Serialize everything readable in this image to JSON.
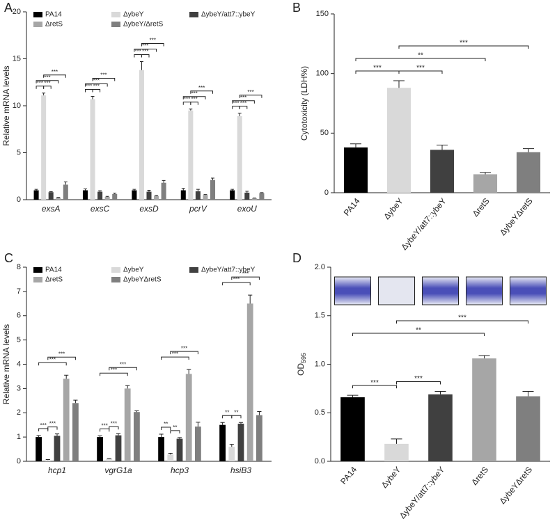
{
  "chart_data": [
    {
      "type": "bar",
      "panel": "A",
      "ylabel": "Relative mRNA levels",
      "category_style": "italic",
      "categories": [
        "exsA",
        "exsC",
        "exsD",
        "pcrV",
        "exoU"
      ],
      "series": [
        {
          "name": "PA14",
          "color": "#000000",
          "values": [
            1.0,
            1.0,
            1.0,
            1.0,
            1.0
          ],
          "errors": [
            0.1,
            0.15,
            0.1,
            0.2,
            0.1
          ]
        },
        {
          "name": "ΔybeY",
          "color": "#d9d9d9",
          "values": [
            11.1,
            10.7,
            13.8,
            9.5,
            8.9
          ],
          "errors": [
            0.25,
            0.3,
            0.9,
            0.15,
            0.3
          ]
        },
        {
          "name": "ΔybeY/att7::ybeY",
          "color": "#404040",
          "values": [
            0.8,
            0.85,
            0.85,
            0.9,
            0.75
          ],
          "errors": [
            0.05,
            0.1,
            0.15,
            0.2,
            0.15
          ]
        },
        {
          "name": "ΔretS",
          "color": "#a6a6a6",
          "values": [
            0.2,
            0.3,
            0.4,
            0.5,
            0.15
          ],
          "errors": [
            0.05,
            0.05,
            0.05,
            0.05,
            0.03
          ]
        },
        {
          "name": "ΔybeY/ΔretS",
          "color": "#7f7f7f",
          "values": [
            1.6,
            0.6,
            1.8,
            2.1,
            0.7
          ],
          "errors": [
            0.3,
            0.1,
            0.25,
            0.2,
            0.05
          ]
        }
      ],
      "ylim": [
        0,
        20
      ],
      "yticks": [
        0,
        5,
        10,
        15,
        20
      ],
      "brackets": [
        {
          "group": 0,
          "bars": [
            0,
            1
          ],
          "label": "***"
        },
        {
          "group": 0,
          "bars": [
            1,
            2
          ],
          "label": "***"
        },
        {
          "group": 0,
          "bars": [
            0,
            3
          ],
          "label": "***"
        },
        {
          "group": 0,
          "bars": [
            1,
            4
          ],
          "label": "***"
        },
        {
          "group": 1,
          "bars": [
            0,
            1
          ],
          "label": "***"
        },
        {
          "group": 1,
          "bars": [
            1,
            2
          ],
          "label": "***"
        },
        {
          "group": 1,
          "bars": [
            0,
            3
          ],
          "label": "***"
        },
        {
          "group": 1,
          "bars": [
            1,
            4
          ],
          "label": "***"
        },
        {
          "group": 2,
          "bars": [
            0,
            1
          ],
          "label": "***"
        },
        {
          "group": 2,
          "bars": [
            1,
            2
          ],
          "label": "***"
        },
        {
          "group": 2,
          "bars": [
            0,
            3
          ],
          "label": "***"
        },
        {
          "group": 2,
          "bars": [
            1,
            4
          ],
          "label": "***"
        },
        {
          "group": 3,
          "bars": [
            0,
            1
          ],
          "label": "***"
        },
        {
          "group": 3,
          "bars": [
            1,
            2
          ],
          "label": "***"
        },
        {
          "group": 3,
          "bars": [
            0,
            3
          ],
          "label": "***"
        },
        {
          "group": 3,
          "bars": [
            1,
            4
          ],
          "label": "***"
        },
        {
          "group": 4,
          "bars": [
            0,
            1
          ],
          "label": "***"
        },
        {
          "group": 4,
          "bars": [
            1,
            2
          ],
          "label": "***"
        },
        {
          "group": 4,
          "bars": [
            0,
            3
          ],
          "label": "***"
        },
        {
          "group": 4,
          "bars": [
            1,
            4
          ],
          "label": "***"
        }
      ]
    },
    {
      "type": "bar",
      "panel": "B",
      "ylabel": "Cytotoxicity (LDH%)",
      "categories": [
        "PA14",
        "ΔybeY",
        "ΔybeY/att7::ybeY",
        "ΔretS",
        "ΔybeYΔretS"
      ],
      "values": [
        38,
        88,
        36,
        15.5,
        34
      ],
      "errors": [
        3,
        6,
        4,
        1.5,
        3
      ],
      "colors": [
        "#000000",
        "#d9d9d9",
        "#404040",
        "#a6a6a6",
        "#7f7f7f"
      ],
      "ylim": [
        0,
        150
      ],
      "yticks": [
        0,
        50,
        100,
        150
      ],
      "brackets": [
        {
          "bars": [
            0,
            1
          ],
          "label": "***"
        },
        {
          "bars": [
            1,
            2
          ],
          "label": "***"
        },
        {
          "bars": [
            0,
            3
          ],
          "label": "**"
        },
        {
          "bars": [
            1,
            4
          ],
          "label": "***"
        }
      ]
    },
    {
      "type": "bar",
      "panel": "C",
      "ylabel": "Relative mRNA levels",
      "category_style": "italic",
      "categories": [
        "hcp1",
        "vgrG1a",
        "hcp3",
        "hsiB3"
      ],
      "series": [
        {
          "name": "PA14",
          "color": "#000000",
          "values": [
            1.0,
            1.0,
            1.0,
            1.5
          ],
          "errors": [
            0.06,
            0.05,
            0.12,
            0.1
          ]
        },
        {
          "name": "ΔybeY",
          "color": "#d9d9d9",
          "values": [
            0.05,
            0.1,
            0.28,
            0.6
          ],
          "errors": [
            0.02,
            0.02,
            0.05,
            0.1
          ]
        },
        {
          "name": "ΔybeY/att7::ybeY",
          "color": "#404040",
          "values": [
            1.05,
            1.07,
            0.93,
            1.55
          ],
          "errors": [
            0.08,
            0.07,
            0.05,
            0.05
          ]
        },
        {
          "name": "ΔretS",
          "color": "#a6a6a6",
          "values": [
            3.4,
            3.0,
            3.6,
            6.5
          ],
          "errors": [
            0.15,
            0.12,
            0.18,
            0.35
          ]
        },
        {
          "name": "ΔybeYΔretS",
          "color": "#7f7f7f",
          "values": [
            2.4,
            2.03,
            1.43,
            1.9
          ],
          "errors": [
            0.12,
            0.05,
            0.18,
            0.15
          ]
        }
      ],
      "ylim": [
        0,
        8
      ],
      "yticks": [
        0,
        1,
        2,
        3,
        4,
        5,
        6,
        7,
        8
      ],
      "brackets": [
        {
          "group": 0,
          "bars": [
            0,
            1
          ],
          "label": "***"
        },
        {
          "group": 0,
          "bars": [
            1,
            2
          ],
          "label": "***"
        },
        {
          "group": 0,
          "bars": [
            0,
            3
          ],
          "label": "***"
        },
        {
          "group": 0,
          "bars": [
            1,
            4
          ],
          "label": "***"
        },
        {
          "group": 1,
          "bars": [
            0,
            1
          ],
          "label": "***"
        },
        {
          "group": 1,
          "bars": [
            1,
            2
          ],
          "label": "***"
        },
        {
          "group": 1,
          "bars": [
            0,
            3
          ],
          "label": "***"
        },
        {
          "group": 1,
          "bars": [
            1,
            4
          ],
          "label": "***"
        },
        {
          "group": 2,
          "bars": [
            0,
            1
          ],
          "label": "**"
        },
        {
          "group": 2,
          "bars": [
            1,
            2
          ],
          "label": "**"
        },
        {
          "group": 2,
          "bars": [
            0,
            3
          ],
          "label": "***"
        },
        {
          "group": 2,
          "bars": [
            1,
            4
          ],
          "label": "***"
        },
        {
          "group": 3,
          "bars": [
            0,
            1
          ],
          "label": "**"
        },
        {
          "group": 3,
          "bars": [
            1,
            2
          ],
          "label": "**"
        },
        {
          "group": 3,
          "bars": [
            0,
            3
          ],
          "label": "***"
        },
        {
          "group": 3,
          "bars": [
            1,
            4
          ],
          "label": "***"
        }
      ]
    },
    {
      "type": "bar",
      "panel": "D",
      "ylabel": "OD",
      "ylabel_sub": "595",
      "gel_images": true,
      "categories": [
        "PA14",
        "ΔybeY",
        "ΔybeY/att7::ybeY",
        "ΔretS",
        "ΔybeYΔretS"
      ],
      "values": [
        0.66,
        0.18,
        0.69,
        1.06,
        0.67
      ],
      "errors": [
        0.02,
        0.05,
        0.03,
        0.03,
        0.05
      ],
      "colors": [
        "#000000",
        "#d9d9d9",
        "#404040",
        "#a6a6a6",
        "#7f7f7f"
      ],
      "ylim": [
        0,
        2
      ],
      "yticks": [
        {
          "value": 0,
          "label": "0.0"
        },
        {
          "value": 0.5,
          "label": "0.5"
        },
        {
          "value": 1,
          "label": "1.0"
        },
        {
          "value": 1.5,
          "label": "1.5"
        },
        {
          "value": 2,
          "label": "2.0"
        }
      ],
      "brackets": [
        {
          "bars": [
            0,
            1
          ],
          "label": "***"
        },
        {
          "bars": [
            1,
            2
          ],
          "label": "***"
        },
        {
          "bars": [
            0,
            3
          ],
          "label": "**"
        },
        {
          "bars": [
            1,
            4
          ],
          "label": "***"
        }
      ]
    }
  ]
}
